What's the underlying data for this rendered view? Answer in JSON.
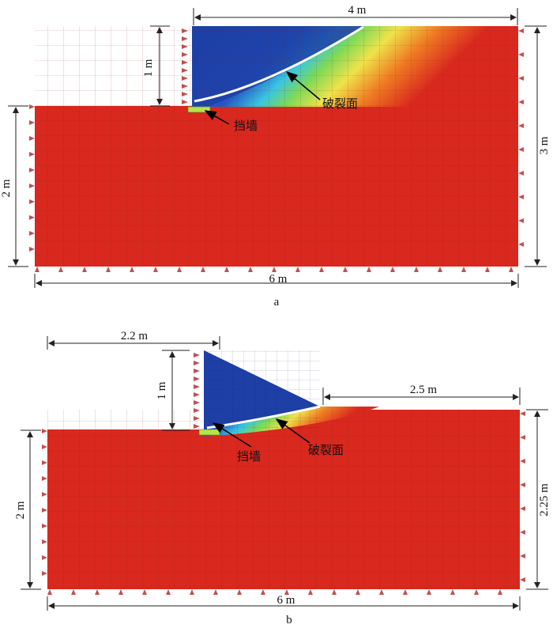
{
  "panels": [
    {
      "label": "a",
      "dims": {
        "top_width": "4 m",
        "upper_height": "1 m",
        "lower_height": "2 m",
        "total_height": "3 m",
        "bottom_width": "6 m"
      },
      "annotations": {
        "wall": "挡墙",
        "failure_surface": "破裂面"
      }
    },
    {
      "label": "b",
      "dims": {
        "top_left_width": "2.2 m",
        "upper_height": "1 m",
        "right_width": "2.5 m",
        "lower_height": "2 m",
        "right_height": "2.25 m",
        "bottom_width": "6 m"
      },
      "annotations": {
        "wall": "挡墙",
        "failure_surface": "破裂面"
      }
    }
  ],
  "colors": {
    "soil_red": "#d9281e",
    "blue": "#1d3fa6",
    "cyan": "#39c6e0",
    "green": "#7ed957",
    "yellow": "#f0e24a",
    "orange": "#ee7a22",
    "failure_line": "#ffffff",
    "wall": "#b7e34a",
    "support": "#c0504d"
  }
}
